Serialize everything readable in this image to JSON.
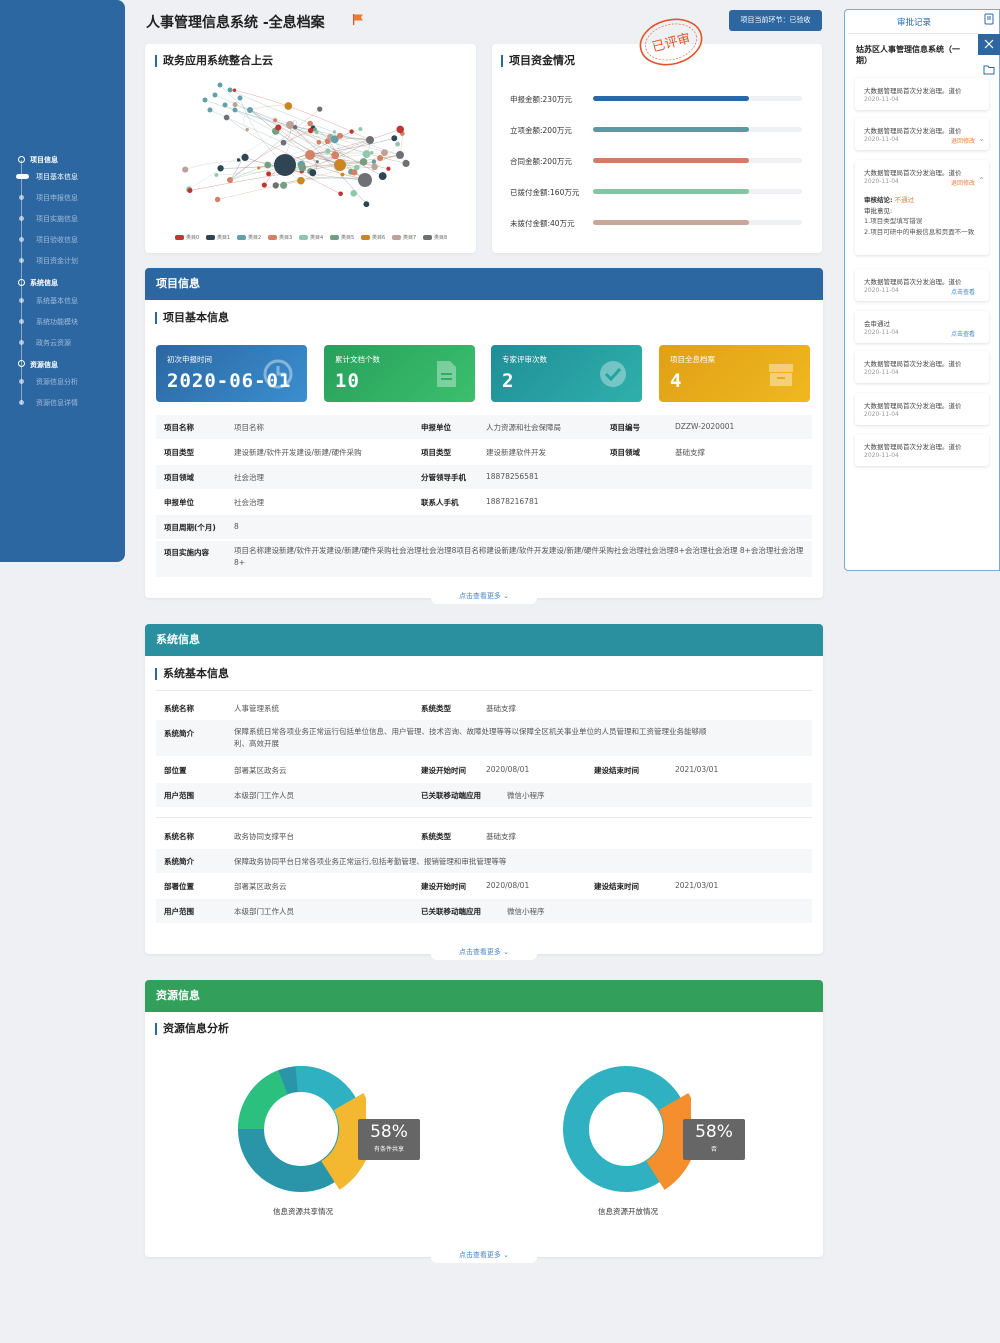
{
  "app": {
    "title": "人事管理信息系统 -全息档案",
    "stage": "项目当前环节：已验收"
  },
  "nav": {
    "groups": [
      {
        "label": "项目信息",
        "items": [
          "项目基本信息",
          "项目申报信息",
          "项目实施信息",
          "项目验收信息",
          "项目资金计划"
        ]
      },
      {
        "label": "系统信息",
        "items": [
          "系统基本信息",
          "系统功能模块",
          "政务云资源"
        ]
      },
      {
        "label": "资源信息",
        "items": [
          "资源信息分析",
          "资源信息详情"
        ]
      }
    ]
  },
  "network": {
    "title": "政务应用系统整合上云",
    "legend": [
      "类目0",
      "类目1",
      "类目2",
      "类目3",
      "类目4",
      "类目5",
      "类目6",
      "类目7",
      "类目8"
    ]
  },
  "funding": {
    "title": "项目资金情况",
    "stamp": "已评审",
    "items": [
      {
        "label": "申报金额:230万元",
        "value": 230,
        "color": "#2c67a2"
      },
      {
        "label": "立项金额:200万元",
        "value": 200,
        "color": "#5b9aa3"
      },
      {
        "label": "合同金额:200万元",
        "value": 200,
        "color": "#cc7f63"
      },
      {
        "label": "已拨付金额:160万元",
        "value": 160,
        "color": "#86c4a4"
      },
      {
        "label": "未拨付金额:40万元",
        "value": 40,
        "color": "#c8a69a"
      }
    ]
  },
  "project": {
    "header": "项目信息",
    "subtitle": "项目基本信息",
    "stats": [
      {
        "label": "初次申报时间",
        "value": "2020-06-01"
      },
      {
        "label": "累计文档个数",
        "value": "10"
      },
      {
        "label": "专家评审次数",
        "value": "2"
      },
      {
        "label": "项目全息档案",
        "value": "4"
      }
    ],
    "fields": {
      "name_k": "项目名称",
      "name_v": "项目名称",
      "unit_k": "申报单位",
      "unit_v": "人力资源和社会保障局",
      "code_k": "项目编号",
      "code_v": "DZZW-2020001",
      "type_k": "项目类型",
      "type_v": "建设新建/软件开发建设/新建/硬件采购",
      "type2_k": "项目类型",
      "type2_v": "建设新建软件开发",
      "field_k": "项目领域",
      "field_v": "基础支撑",
      "domain_k": "项目领域",
      "domain_v": "社会治理",
      "leader_k": "分管领导手机",
      "leader_v": "18878256581",
      "unit2_k": "申报单位",
      "unit2_v": "社会治理",
      "contact_k": "联系人手机",
      "contact_v": "18878216781",
      "cycle_k": "项目周期(个月)",
      "cycle_v": "8",
      "content_k": "项目实施内容",
      "content_v": "项目名称建设新建/软件开发建设/新建/硬件采购社会治理社会治理8项目名称建设新建/软件开发建设/新建/硬件采购社会治理社会治理8+会治理社会治理 8+会治理社会治理8+"
    },
    "more": "点击查看更多"
  },
  "system": {
    "header": "系统信息",
    "subtitle": "系统基本信息",
    "more": "点击查看更多",
    "a": {
      "name_k": "系统名称",
      "name_v": "人事管理系统",
      "type_k": "系统类型",
      "type_v": "基础支撑",
      "intro_k": "系统简介",
      "intro_v": "保障系统日常各项业务正常运行包括单位信息、用户管理、技术咨询、故障处理等等以保障全区机关事业单位的人员管理和工资管理业务能够顺利、高效开展",
      "loc_k": "部位置",
      "loc_v": "部署某区政务云",
      "start_k": "建设开始时间",
      "start_v": "2020/08/01",
      "end_k": "建设结束时间",
      "end_v": "2021/03/01",
      "users_k": "用户范围",
      "users_v": "本级部门工作人员",
      "app_k": "已关联移动端应用",
      "app_v": "微信小程序"
    },
    "b": {
      "name_k": "系统名称",
      "name_v": "政务协同支撑平台",
      "type_k": "系统类型",
      "type_v": "基础支撑",
      "intro_k": "系统简介",
      "intro_v": "保障政务协同平台日常各项业务正常运行,包括考勤管理、报销管理和审批管理等等",
      "loc_k": "部署位置",
      "loc_v": "部署某区政务云",
      "start_k": "建设开始时间",
      "start_v": "2020/08/01",
      "end_k": "建设结束时间",
      "end_v": "2021/03/01",
      "users_k": "用户范围",
      "users_v": "本级部门工作人员",
      "app_k": "已关联移动端应用",
      "app_v": "微信小程序"
    }
  },
  "resource": {
    "header": "资源信息",
    "subtitle": "资源信息分析",
    "more": "点击查看更多",
    "donuts": [
      {
        "caption": "信息资源共享情况",
        "pct": "58%",
        "sub": "有条件共享"
      },
      {
        "caption": "信息资源开放情况",
        "pct": "58%",
        "sub": "否"
      }
    ]
  },
  "approval": {
    "title": "审批记录",
    "project": "姑苏区人事管理信息系统（一期）",
    "items": [
      {
        "text": "大数据管理局首次分发治理。道价",
        "date": "2020-11-04",
        "status": ""
      },
      {
        "text": "大数据管理局首次分发治理。道价",
        "date": "2020-11-04",
        "status": "退回修改"
      },
      {
        "text": "大数据管理局首次分发治理。道价",
        "date": "2020-11-04",
        "status": "退回修改",
        "result_k": "审核结论:",
        "result_v": "不通过",
        "opinion": "审批意见:",
        "notes": [
          "1.项目类型填写错误",
          "2.项目可研中的申报信息和页面不一致"
        ]
      },
      {
        "text": "大数据管理局首次分发治理。道价",
        "date": "2020-11-04",
        "status": "点击查看"
      },
      {
        "text": "会审通过",
        "date": "2020-11-04",
        "status": "点击查看"
      },
      {
        "text": "大数据管理局首次分发治理。道价",
        "date": "2020-11-04",
        "status": ""
      },
      {
        "text": "大数据管理局首次分发治理。道价",
        "date": "2020-11-04",
        "status": ""
      },
      {
        "text": "大数据管理局首次分发治理。道价",
        "date": "2020-11-04",
        "status": ""
      }
    ]
  },
  "colors": {
    "primary": "#2c67a2",
    "teal": "#2a8f9e",
    "green": "#32a05a",
    "orange": "#ee7c3c",
    "link": "#4a86c5"
  },
  "icons": [
    "flag-icon",
    "document-icon",
    "check-icon",
    "archive-icon",
    "clock-icon",
    "close-icon",
    "folder-icon",
    "note-icon",
    "chevron-down-icon",
    "chevron-up-icon"
  ]
}
